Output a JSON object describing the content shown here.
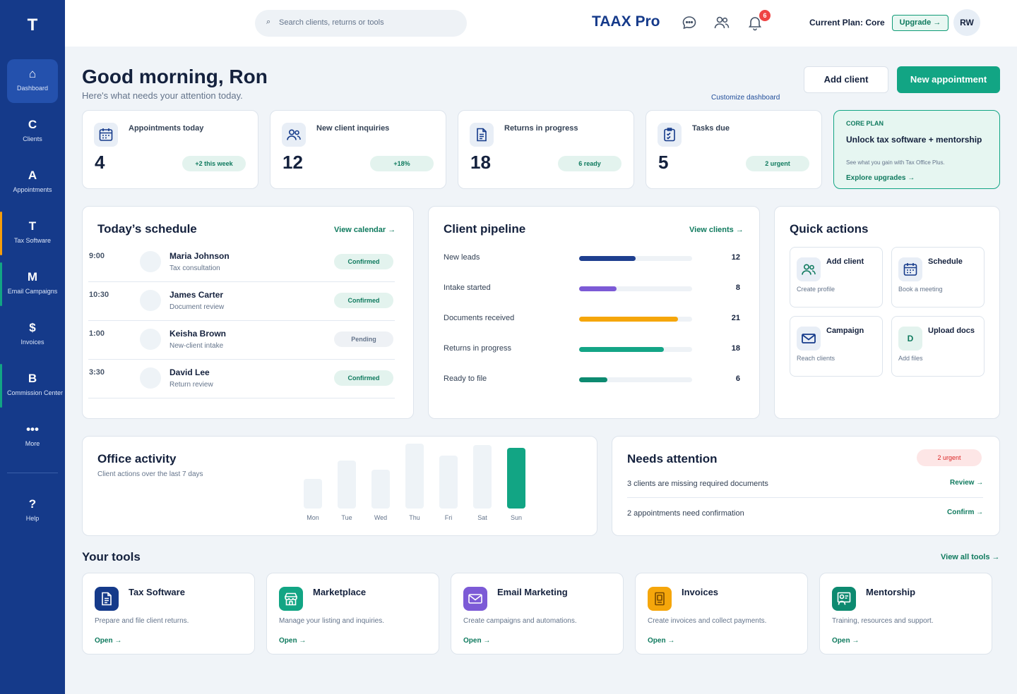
{
  "brand": "TAAX Pro",
  "sidebar": {
    "logo": "T",
    "items": [
      {
        "icon": "⌂",
        "label": "Dashboard"
      },
      {
        "icon": "C",
        "label": "Clients"
      },
      {
        "icon": "A",
        "label": "Appointments"
      },
      {
        "icon": "T",
        "label": "Tax Software"
      },
      {
        "icon": "M",
        "label": "Email Campaigns"
      },
      {
        "icon": "$",
        "label": "Invoices"
      },
      {
        "icon": "B",
        "label": "Commission Center"
      },
      {
        "icon": "•••",
        "label": "More"
      },
      {
        "icon": "?",
        "label": "Help"
      }
    ],
    "accent_colors": {
      "tax_software": "#f59e0b",
      "email_campaigns": "#12a584",
      "commission_center": "#12a584"
    }
  },
  "topbar": {
    "search_placeholder": "Search clients, returns or tools",
    "notification_count": "6",
    "plan_label": "Current Plan: Core",
    "upgrade_label": "Upgrade →",
    "avatar_initials": "RW"
  },
  "header": {
    "greeting": "Good morning, Ron",
    "subtitle": "Here's what needs your attention today.",
    "add_client_label": "Add client",
    "new_appointment_label": "New appointment",
    "customize_label": "Customize dashboard"
  },
  "stats": [
    {
      "title": "Appointments today",
      "value": "4",
      "pill": "+2 this week",
      "icon": "calendar-icon"
    },
    {
      "title": "New client inquiries",
      "value": "12",
      "pill": "+18%",
      "icon": "users-icon"
    },
    {
      "title": "Returns in progress",
      "value": "18",
      "pill": "6 ready",
      "icon": "document-icon"
    },
    {
      "title": "Tasks due",
      "value": "5",
      "pill": "2 urgent",
      "icon": "checklist-icon"
    }
  ],
  "promo": {
    "tag": "CORE PLAN",
    "title": "Unlock tax software + mentorship",
    "description": "See what you gain with Tax Office Plus.",
    "link": "Explore upgrades →"
  },
  "schedule": {
    "title": "Today’s schedule",
    "link": "View calendar →",
    "rows": [
      {
        "time": "9:00",
        "name": "Maria Johnson",
        "type": "Tax consultation",
        "status": "Confirmed"
      },
      {
        "time": "10:30",
        "name": "James Carter",
        "type": "Document review",
        "status": "Confirmed"
      },
      {
        "time": "1:00",
        "name": "Keisha Brown",
        "type": "New-client intake",
        "status": "Pending"
      },
      {
        "time": "3:30",
        "name": "David Lee",
        "type": "Return review",
        "status": "Confirmed"
      }
    ]
  },
  "pipeline": {
    "title": "Client pipeline",
    "link": "View clients →",
    "max": 24,
    "rows": [
      {
        "label": "New leads",
        "count": "12",
        "value": 12,
        "color": "#1e3f8f"
      },
      {
        "label": "Intake started",
        "count": "8",
        "value": 8,
        "color": "#7c5ad6"
      },
      {
        "label": "Documents received",
        "count": "21",
        "value": 21,
        "color": "#f5a60b"
      },
      {
        "label": "Returns in progress",
        "count": "18",
        "value": 18,
        "color": "#14a586"
      },
      {
        "label": "Ready to file",
        "count": "6",
        "value": 6,
        "color": "#0d8a70"
      }
    ]
  },
  "quick_actions": {
    "title": "Quick actions",
    "items": [
      {
        "title": "Add client",
        "subtitle": "Create profile",
        "icon": "user-add-icon"
      },
      {
        "title": "Schedule",
        "subtitle": "Book a meeting",
        "icon": "calendar-icon"
      },
      {
        "title": "Campaign",
        "subtitle": "Reach clients",
        "icon": "mail-icon"
      },
      {
        "title": "Upload docs",
        "subtitle": "Add files",
        "icon": "D"
      }
    ]
  },
  "activity": {
    "title": "Office activity",
    "subtitle": "Client actions over the last 7 days",
    "highlight_color": "#12a584",
    "days": [
      "Mon",
      "Tue",
      "Wed",
      "Thu",
      "Fri",
      "Sat",
      "Sun"
    ],
    "levels": [
      0.46,
      0.74,
      0.6,
      1.0,
      0.82,
      0.98,
      0.93
    ]
  },
  "attention": {
    "title": "Needs attention",
    "pill": "2 urgent",
    "items": [
      {
        "text": "3 clients are missing required documents",
        "action": "Review →"
      },
      {
        "text": "2 appointments need confirmation",
        "action": "Confirm →"
      }
    ]
  },
  "tools": {
    "title": "Your tools",
    "link": "View all tools →",
    "items": [
      {
        "title": "Tax Software",
        "description": "Prepare and file client returns.",
        "link": "Open →",
        "color": "#153a8a",
        "icon": "tax-doc-icon"
      },
      {
        "title": "Marketplace",
        "description": "Manage your listing and inquiries.",
        "link": "Open →",
        "color": "#12a584",
        "icon": "store-icon"
      },
      {
        "title": "Email Marketing",
        "description": "Create campaigns and automations.",
        "link": "Open →",
        "color": "#7c5ad6",
        "icon": "mail-icon"
      },
      {
        "title": "Invoices",
        "description": "Create invoices and collect payments.",
        "link": "Open →",
        "color": "#f5a60b",
        "icon": "invoice-icon"
      },
      {
        "title": "Mentorship",
        "description": "Training, resources and support.",
        "link": "Open →",
        "color": "#0d8a70",
        "icon": "mentor-icon"
      }
    ]
  }
}
